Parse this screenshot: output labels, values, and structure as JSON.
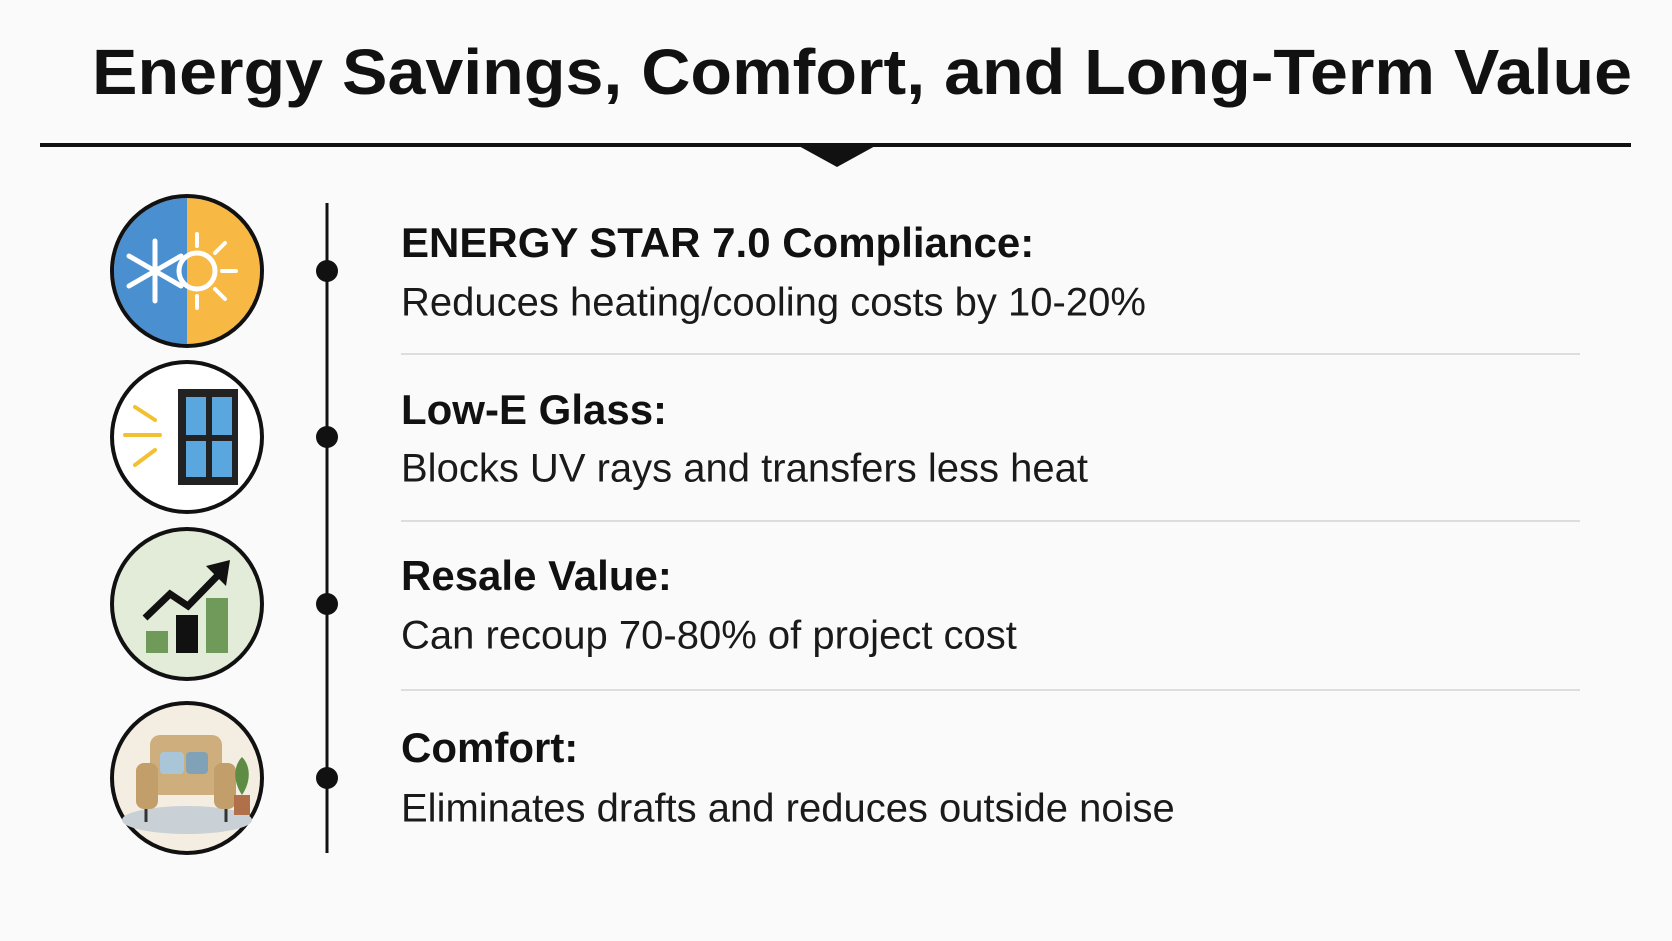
{
  "title": "Energy Savings, Comfort, and Long-Term Value",
  "items": [
    {
      "heading": "ENERGY STAR 7.0 Compliance:",
      "description": "Reduces heating/cooling costs by 10-20%"
    },
    {
      "heading": "Low-E Glass:",
      "description": "Blocks UV rays and transfers less heat"
    },
    {
      "heading": "Resale Value:",
      "description": "Can recoup 70-80% of project cost"
    },
    {
      "heading": "Comfort:",
      "description": "Eliminates drafts and reduces outside noise"
    }
  ]
}
